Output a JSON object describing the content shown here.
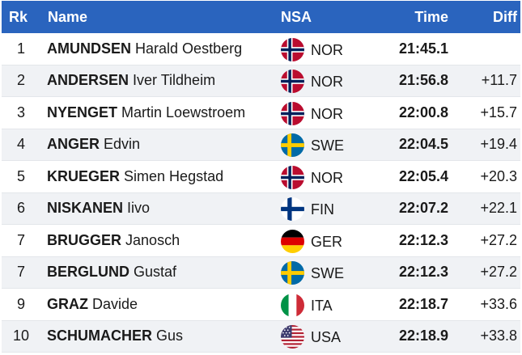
{
  "header": {
    "rank": "Rk",
    "name": "Name",
    "nsa": "NSA",
    "time": "Time",
    "diff": "Diff"
  },
  "rows": [
    {
      "rank": "1",
      "last": "AMUNDSEN",
      "first": "Harald Oestberg",
      "nsa": "NOR",
      "flag": "norway-flag-icon",
      "time": "21:45.1",
      "diff": ""
    },
    {
      "rank": "2",
      "last": "ANDERSEN",
      "first": "Iver Tildheim",
      "nsa": "NOR",
      "flag": "norway-flag-icon",
      "time": "21:56.8",
      "diff": "+11.7"
    },
    {
      "rank": "3",
      "last": "NYENGET",
      "first": "Martin Loewstroem",
      "nsa": "NOR",
      "flag": "norway-flag-icon",
      "time": "22:00.8",
      "diff": "+15.7"
    },
    {
      "rank": "4",
      "last": "ANGER",
      "first": "Edvin",
      "nsa": "SWE",
      "flag": "sweden-flag-icon",
      "time": "22:04.5",
      "diff": "+19.4"
    },
    {
      "rank": "5",
      "last": "KRUEGER",
      "first": "Simen Hegstad",
      "nsa": "NOR",
      "flag": "norway-flag-icon",
      "time": "22:05.4",
      "diff": "+20.3"
    },
    {
      "rank": "6",
      "last": "NISKANEN",
      "first": "Iivo",
      "nsa": "FIN",
      "flag": "finland-flag-icon",
      "time": "22:07.2",
      "diff": "+22.1"
    },
    {
      "rank": "7",
      "last": "BRUGGER",
      "first": "Janosch",
      "nsa": "GER",
      "flag": "germany-flag-icon",
      "time": "22:12.3",
      "diff": "+27.2"
    },
    {
      "rank": "7",
      "last": "BERGLUND",
      "first": "Gustaf",
      "nsa": "SWE",
      "flag": "sweden-flag-icon",
      "time": "22:12.3",
      "diff": "+27.2"
    },
    {
      "rank": "9",
      "last": "GRAZ",
      "first": "Davide",
      "nsa": "ITA",
      "flag": "italy-flag-icon",
      "time": "22:18.7",
      "diff": "+33.6"
    },
    {
      "rank": "10",
      "last": "SCHUMACHER",
      "first": "Gus",
      "nsa": "USA",
      "flag": "usa-flag-icon",
      "time": "22:18.9",
      "diff": "+33.8"
    }
  ],
  "colors": {
    "header_bg": "#2a64be",
    "row_alt_bg": "#f0f2f5"
  }
}
